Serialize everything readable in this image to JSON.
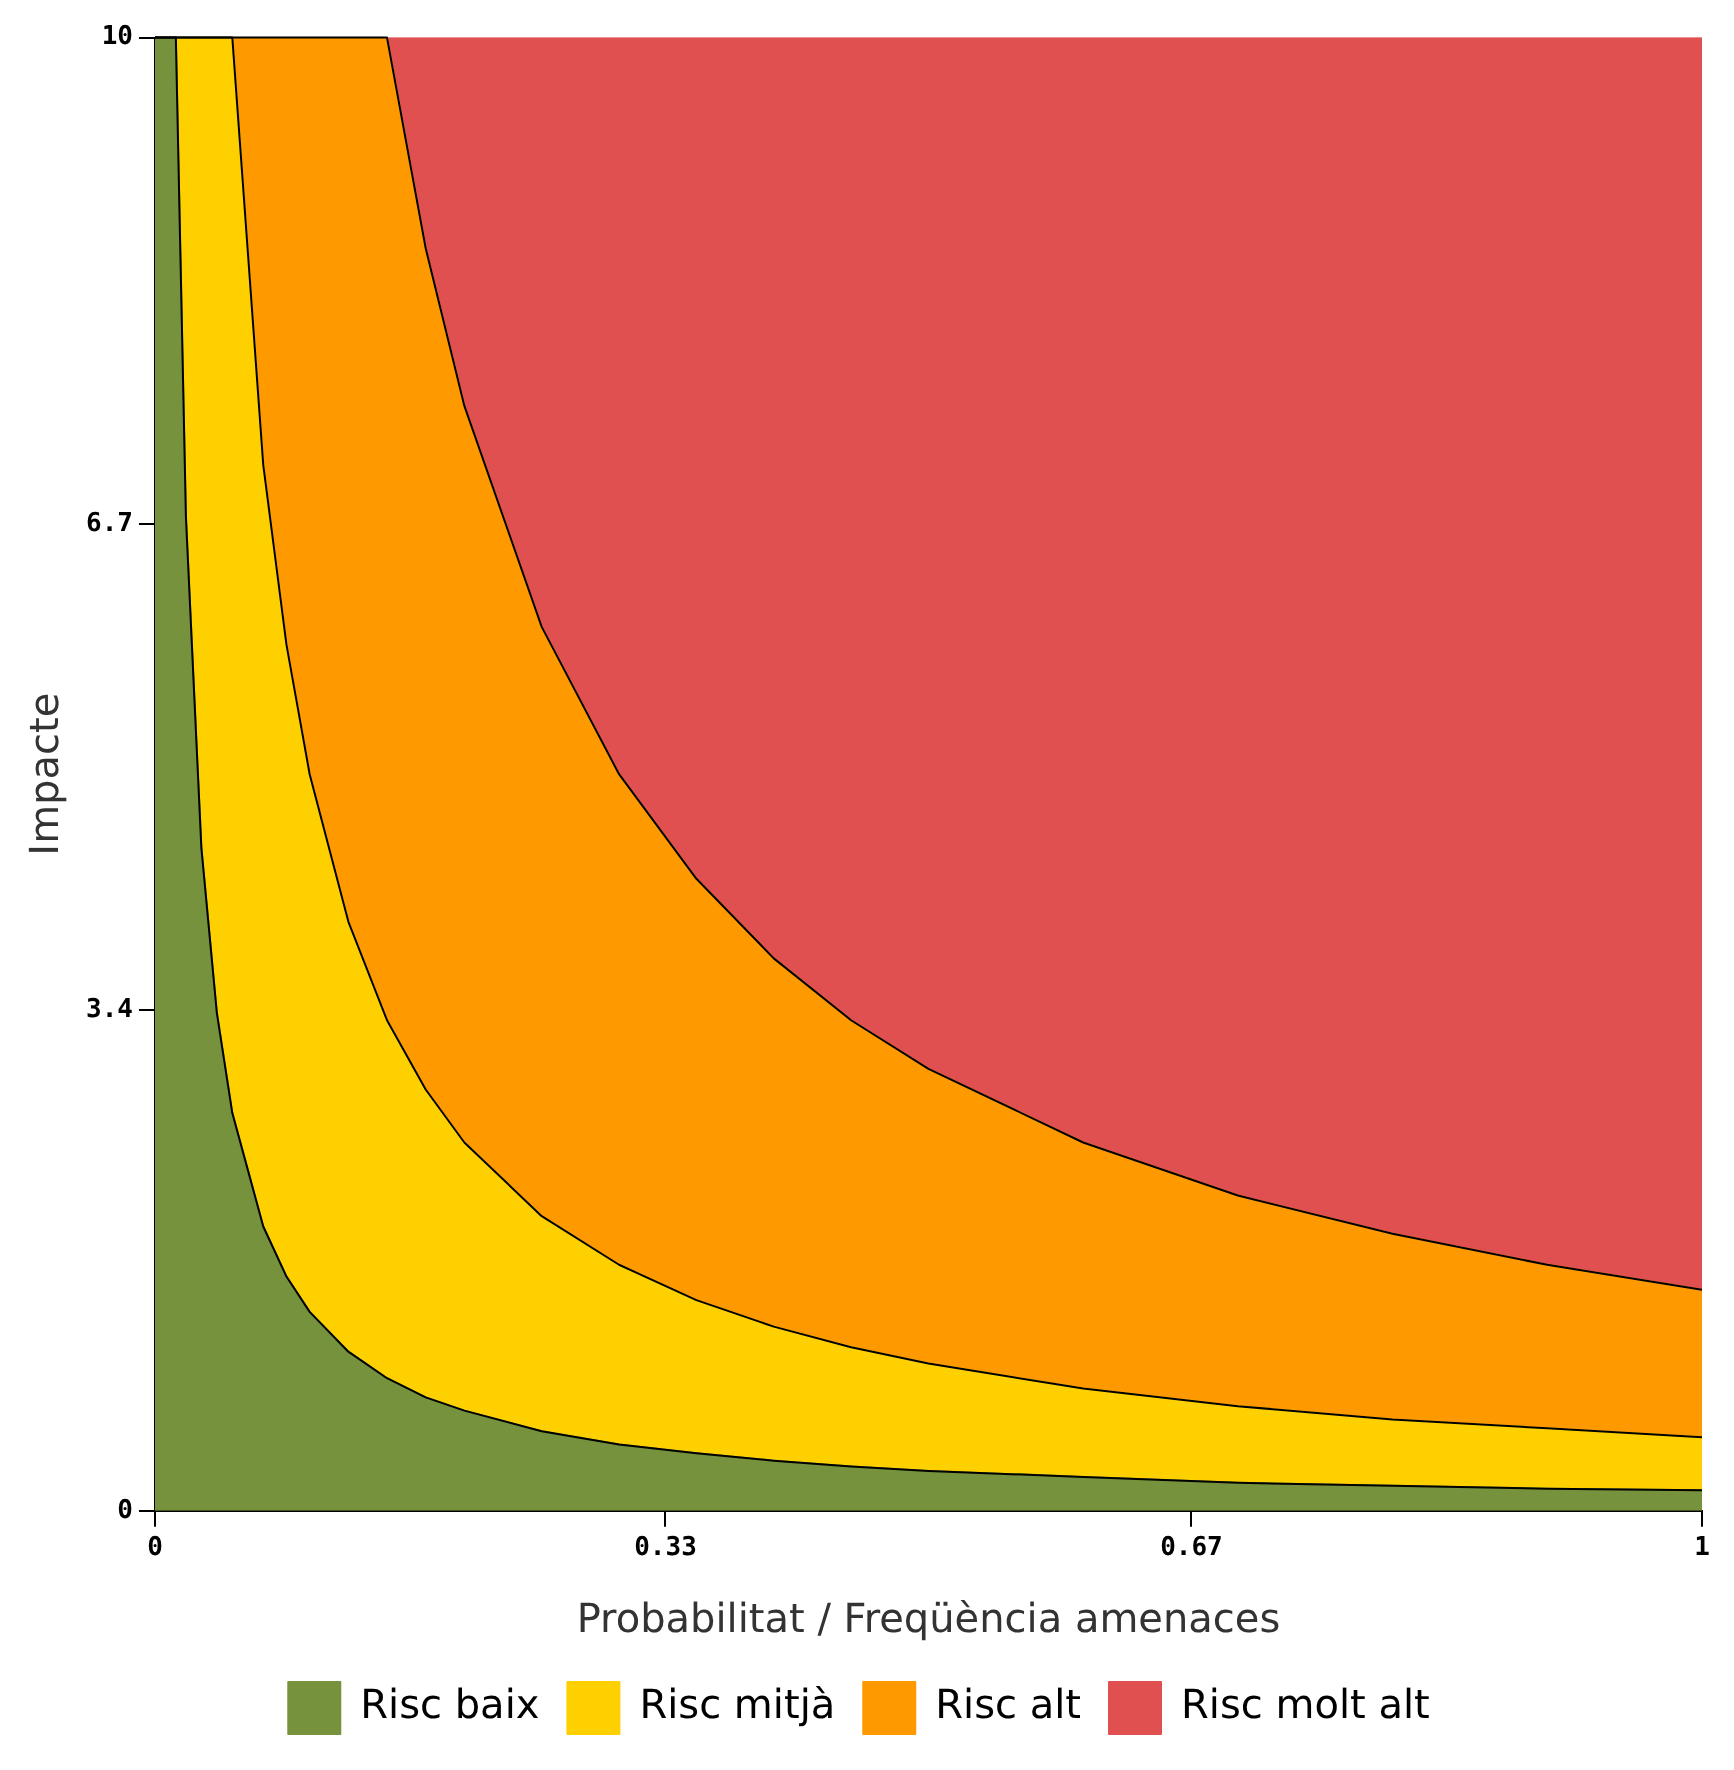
{
  "chart_data": {
    "type": "area",
    "stacked": true,
    "xlabel": "Probabilitat / Freqüència amenaces",
    "ylabel": "Impacte",
    "x": [
      0,
      0.0135,
      0.02,
      0.03,
      0.04,
      0.05,
      0.07,
      0.085,
      0.1,
      0.125,
      0.15,
      0.175,
      0.2,
      0.25,
      0.3,
      0.35,
      0.4,
      0.45,
      0.5,
      0.6,
      0.7,
      0.8,
      0.9,
      1
    ],
    "series": [
      {
        "name": "Risc baix",
        "color": "#76923c",
        "values": [
          10,
          10,
          6.75,
          4.5,
          3.38,
          2.7,
          1.93,
          1.59,
          1.35,
          1.08,
          0.9,
          0.77,
          0.68,
          0.54,
          0.45,
          0.39,
          0.34,
          0.3,
          0.27,
          0.23,
          0.19,
          0.17,
          0.15,
          0.14
        ]
      },
      {
        "name": "Risc mitjà",
        "color": "#ffd000",
        "values": [
          0,
          0,
          3.25,
          5.5,
          6.62,
          7.3,
          5.17,
          4.29,
          3.65,
          2.92,
          2.43,
          2.09,
          1.82,
          1.46,
          1.22,
          1.04,
          0.91,
          0.81,
          0.73,
          0.6,
          0.52,
          0.45,
          0.41,
          0.36
        ]
      },
      {
        "name": "Risc alt",
        "color": "#ff9900",
        "values": [
          0,
          0,
          0,
          0,
          0,
          0,
          2.9,
          4.12,
          5,
          6,
          6.67,
          5.71,
          5,
          4,
          3.33,
          2.86,
          2.5,
          2.22,
          2,
          1.67,
          1.43,
          1.26,
          1.11,
          1
        ]
      },
      {
        "name": "Risc molt alt",
        "color": "#e05050",
        "values": [
          0,
          0,
          0,
          0,
          0,
          0,
          0,
          0,
          0,
          0,
          0,
          1.43,
          2.5,
          4,
          5,
          5.71,
          6.25,
          6.67,
          7,
          7.5,
          7.86,
          8.12,
          8.33,
          8.5
        ]
      }
    ],
    "xlim": [
      0,
      1
    ],
    "xticks": [
      0,
      0.33,
      0.67,
      1
    ],
    "ylim": [
      0,
      10
    ],
    "yticks": [
      0,
      3.4,
      6.7,
      10
    ],
    "grid": false,
    "legend": "bottom",
    "marker": "none",
    "line_style": "solid"
  }
}
